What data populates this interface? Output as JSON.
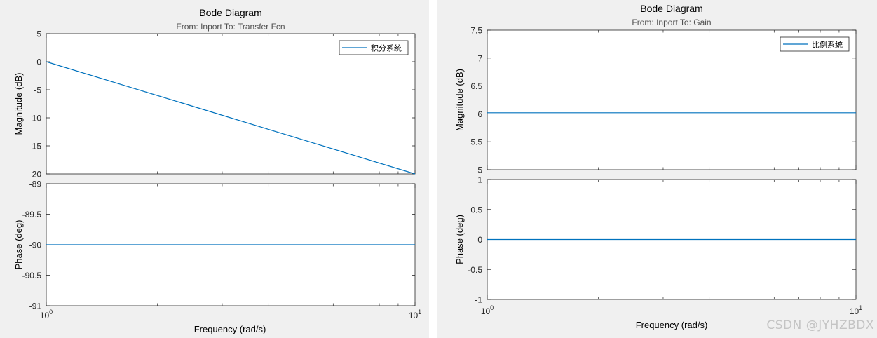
{
  "chart_data": [
    {
      "type": "line",
      "title": "Bode Diagram",
      "subtitle": "From: Inport  To: Transfer Fcn",
      "xlabel": "Frequency  (rad/s)",
      "xscale": "log",
      "xlim": [
        1,
        10
      ],
      "xticks": [
        {
          "base": "10",
          "exp": "0"
        },
        {
          "base": "10",
          "exp": "1"
        }
      ],
      "legend": {
        "entries": [
          "积分系统"
        ],
        "placement": "top-right"
      },
      "line_color": "#0072bd",
      "subplots": [
        {
          "ylabel": "Magnitude (dB)",
          "ylim": [
            -20,
            5
          ],
          "yticks": [
            5,
            0,
            -5,
            -10,
            -15,
            -20
          ],
          "series": [
            {
              "name": "积分系统",
              "x": [
                1,
                10
              ],
              "y": [
                0,
                -20
              ]
            }
          ]
        },
        {
          "ylabel": "Phase (deg)",
          "ylim": [
            -91,
            -89
          ],
          "yticks": [
            -89,
            -89.5,
            -90,
            -90.5,
            -91
          ],
          "series": [
            {
              "name": "积分系统",
              "x": [
                1,
                10
              ],
              "y": [
                -90,
                -90
              ]
            }
          ]
        }
      ]
    },
    {
      "type": "line",
      "title": "Bode Diagram",
      "subtitle": "From: Inport  To: Gain",
      "xlabel": "Frequency  (rad/s)",
      "xscale": "log",
      "xlim": [
        1,
        10
      ],
      "xticks": [
        {
          "base": "10",
          "exp": "0"
        },
        {
          "base": "10",
          "exp": "1"
        }
      ],
      "legend": {
        "entries": [
          "比例系统"
        ],
        "placement": "top-right"
      },
      "line_color": "#0072bd",
      "subplots": [
        {
          "ylabel": "Magnitude (dB)",
          "ylim": [
            5,
            7.5
          ],
          "yticks": [
            7.5,
            7,
            6.5,
            6,
            5.5,
            5
          ],
          "series": [
            {
              "name": "比例系统",
              "x": [
                1,
                10
              ],
              "y": [
                6.02,
                6.02
              ]
            }
          ]
        },
        {
          "ylabel": "Phase (deg)",
          "ylim": [
            -1,
            1
          ],
          "yticks": [
            1,
            0.5,
            0,
            -0.5,
            -1
          ],
          "series": [
            {
              "name": "比例系统",
              "x": [
                1,
                10
              ],
              "y": [
                0,
                0
              ]
            }
          ]
        }
      ]
    }
  ],
  "watermark": "CSDN @JYHZBDX"
}
